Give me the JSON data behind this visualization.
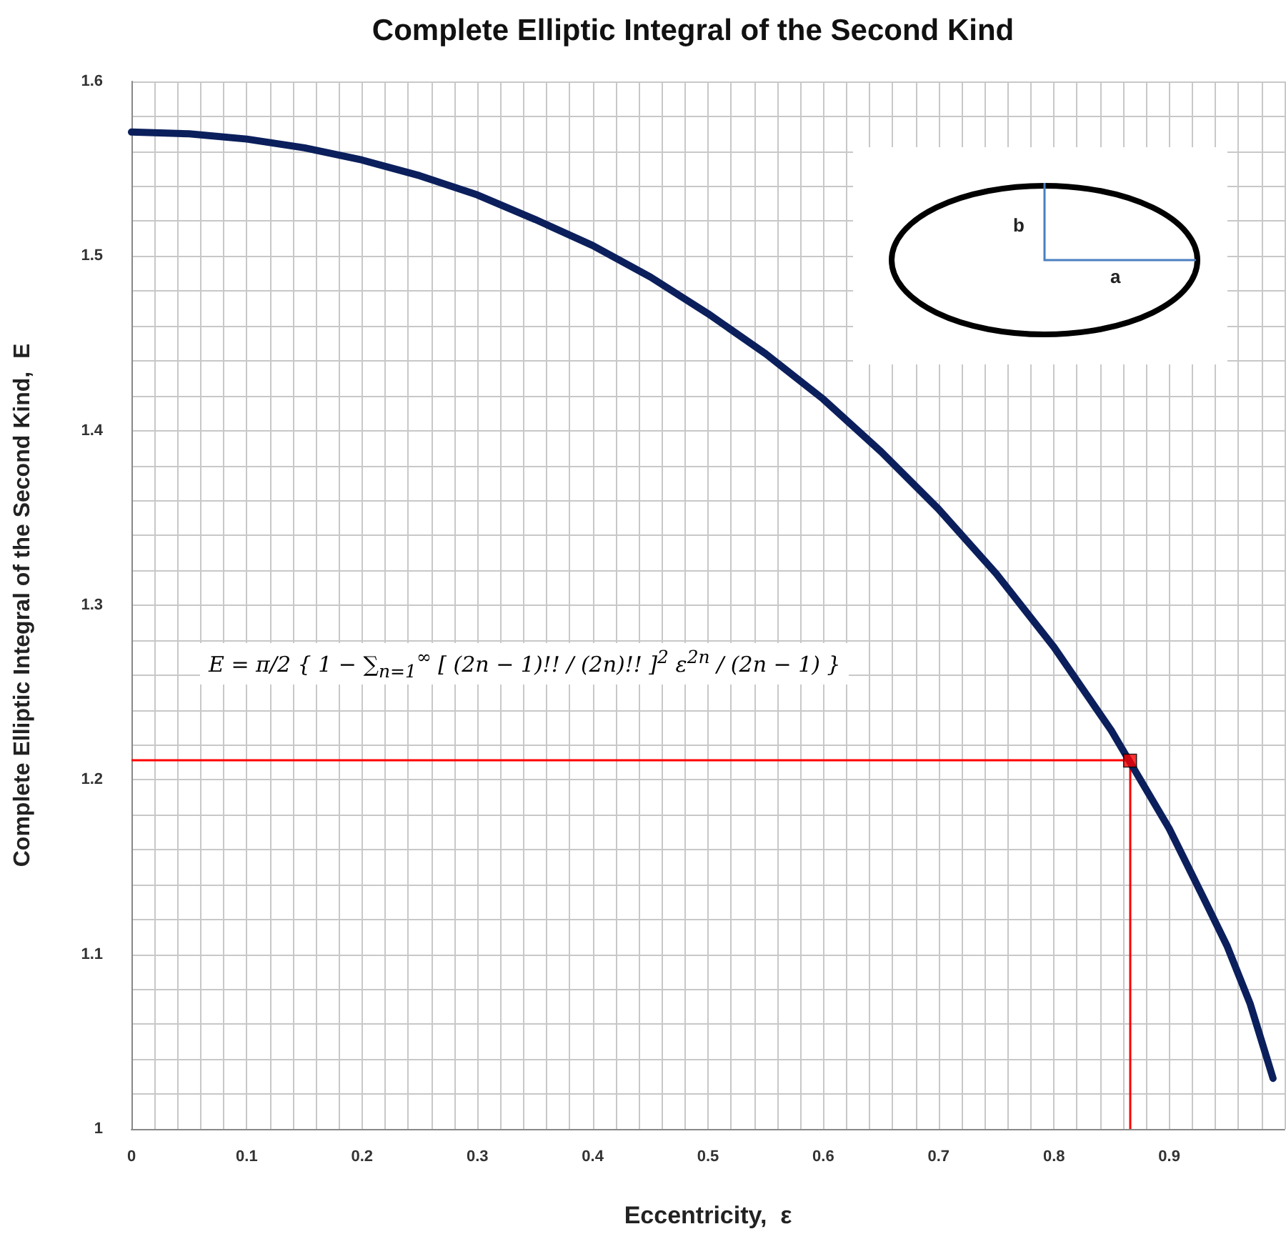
{
  "chart_data": {
    "type": "line",
    "title": "Complete Elliptic Integral of the Second Kind",
    "xlabel": "Eccentricity,  ε",
    "ylabel": "Complete Elliptic Integral of the Second Kind,  E",
    "x": [
      0,
      0.05,
      0.1,
      0.15,
      0.2,
      0.25,
      0.3,
      0.35,
      0.4,
      0.45,
      0.5,
      0.55,
      0.6,
      0.65,
      0.7,
      0.75,
      0.8,
      0.85,
      0.9,
      0.93,
      0.95,
      0.97,
      0.99
    ],
    "series": [
      {
        "color": "#0b1f5c",
        "marker": "none",
        "values": [
          1.571,
          1.57,
          1.567,
          1.562,
          1.555,
          1.546,
          1.535,
          1.521,
          1.506,
          1.488,
          1.467,
          1.444,
          1.418,
          1.388,
          1.355,
          1.318,
          1.276,
          1.228,
          1.172,
          1.132,
          1.105,
          1.072,
          1.029
        ]
      },
      {
        "type": "scatter",
        "color": "#ff0000",
        "marker": "square",
        "x": [
          0.866
        ],
        "values": [
          1.211
        ]
      }
    ],
    "xlim": [
      0,
      1
    ],
    "xticks": [
      0,
      0.1,
      0.2,
      0.3,
      0.4,
      0.5,
      0.6,
      0.7,
      0.8,
      0.9
    ],
    "ylim": [
      1,
      1.6
    ],
    "yticks": [
      1,
      1.1,
      1.2,
      1.3,
      1.4,
      1.5,
      1.6
    ],
    "grid": true,
    "ref_lines": [
      {
        "axis": "x",
        "value": 0.866,
        "color": "#ff0000"
      },
      {
        "axis": "y",
        "value": 1.211,
        "color": "#ff0000"
      }
    ],
    "annotations": [
      "E = π/2 { 1 − ∑$_{n=1}$$^{∞}$ [ (2n − 1)!! / (2n)!! ]$^{2}$ ε$^{2n}$ / (2n − 1) }",
      "b",
      "a"
    ]
  }
}
